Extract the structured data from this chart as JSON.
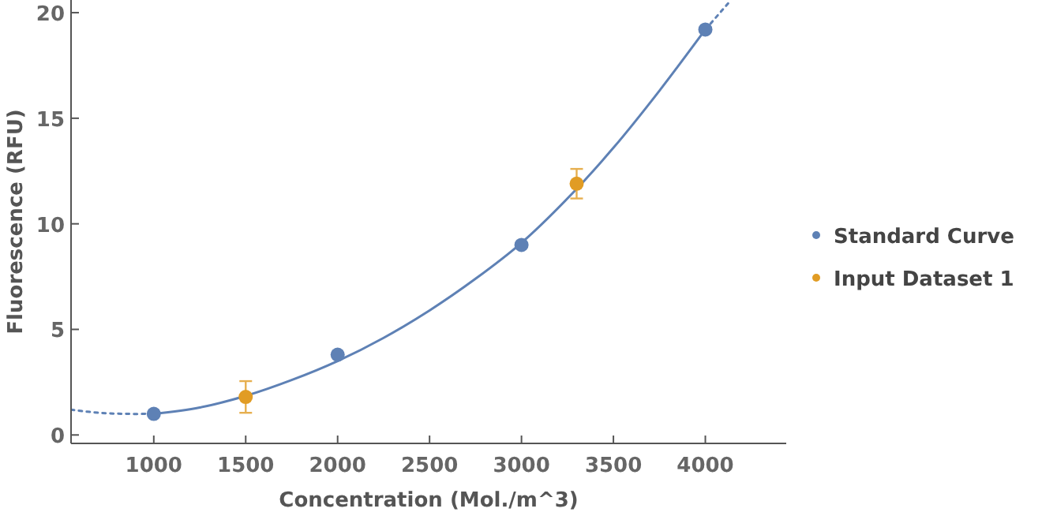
{
  "chart_data": {
    "type": "scatter",
    "xlabel": "Concentration  (Mol./m^3)",
    "ylabel": "Fluorescence  (RFU)",
    "xlim": [
      550,
      4440
    ],
    "ylim": [
      -0.4,
      20.6
    ],
    "xticks": [
      1000,
      1500,
      2000,
      2500,
      3000,
      3500,
      4000
    ],
    "yticks": [
      0,
      5,
      10,
      15,
      20
    ],
    "legend": "right",
    "grid": false,
    "series": [
      {
        "type": "line",
        "marker": "none",
        "color": "#5e81b5",
        "line_style": "dotted",
        "x": [
          550,
          700,
          850,
          1000
        ],
        "values": [
          1.2,
          1.05,
          1.0,
          1.0
        ]
      },
      {
        "type": "line",
        "marker": "none",
        "color": "#5e81b5",
        "line_style": "solid",
        "x": [
          1000,
          1250,
          1500,
          1750,
          2000,
          2250,
          2500,
          2750,
          3000,
          3250,
          3500,
          3750,
          4000
        ],
        "values": [
          1.0,
          1.3,
          1.85,
          2.6,
          3.5,
          4.6,
          5.9,
          7.4,
          9.1,
          11.2,
          13.6,
          16.3,
          19.2
        ]
      },
      {
        "type": "line",
        "marker": "none",
        "color": "#5e81b5",
        "line_style": "dotted",
        "x": [
          4000,
          4140
        ],
        "values": [
          19.2,
          20.6
        ]
      },
      {
        "name": "Standard Curve",
        "marker": "circle",
        "color": "#5e81b5",
        "x": [
          1000,
          2000,
          3000,
          4000
        ],
        "values": [
          1.0,
          3.8,
          9.0,
          19.2
        ]
      },
      {
        "name": "Input Dataset 1",
        "marker": "circle",
        "color": "#e19c24",
        "x": [
          1500,
          3300
        ],
        "values": [
          1.8,
          11.9
        ],
        "errors": [
          0.75,
          0.7
        ]
      }
    ]
  }
}
